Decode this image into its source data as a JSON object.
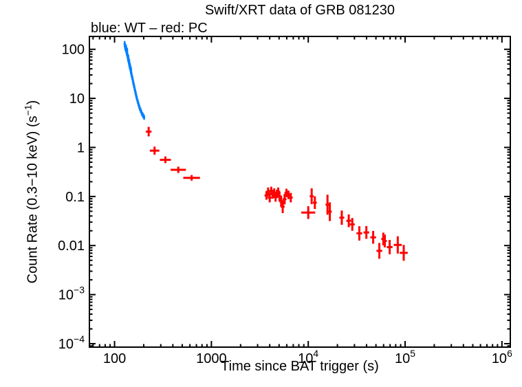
{
  "header": {
    "title": "Swift/XRT data of GRB 081230",
    "subtitle": "blue: WT – red: PC"
  },
  "chart_data": {
    "type": "scatter",
    "title": "Swift/XRT data of GRB 081230",
    "subtitle": "blue: WT – red: PC",
    "xlabel": "Time since BAT trigger (s)",
    "ylabel": "Count Rate (0.3−10 keV) (s⁻¹)",
    "ylabel_parts": {
      "pre": "Count Rate (0.3−10 keV) (s",
      "sup": "−1",
      "post": ")"
    },
    "grid": false,
    "legend_position": "none",
    "x_axis": {
      "scale": "log",
      "min": 55,
      "max": 1220000,
      "ticks": [
        {
          "v": 100,
          "label": "100"
        },
        {
          "v": 1000,
          "label": "1000"
        },
        {
          "v": 10000,
          "label": "10^4"
        },
        {
          "v": 100000,
          "label": "10^5"
        },
        {
          "v": 1000000,
          "label": "10^6"
        }
      ]
    },
    "y_axis": {
      "scale": "log",
      "min": 8.5e-05,
      "max": 183,
      "ticks": [
        {
          "v": 100,
          "label": "100"
        },
        {
          "v": 10,
          "label": "10"
        },
        {
          "v": 1,
          "label": "1"
        },
        {
          "v": 0.1,
          "label": "0.1"
        },
        {
          "v": 0.01,
          "label": "0.01"
        },
        {
          "v": 0.001,
          "label": "10^-3"
        },
        {
          "v": 0.0001,
          "label": "10^-4"
        }
      ]
    },
    "series": [
      {
        "name": "WT",
        "color": "#0080ff",
        "marker": "cross-errorbar",
        "points": [
          [
            127,
            128,
            1.15,
            1.006
          ],
          [
            128,
            118,
            1.15,
            1.006
          ],
          [
            129,
            108,
            1.15,
            1.006
          ],
          [
            130,
            112,
            1.15,
            1.006
          ],
          [
            131,
            99,
            1.15,
            1.006
          ],
          [
            132,
            105,
            1.15,
            1.006
          ],
          [
            133,
            90,
            1.15,
            1.006
          ],
          [
            134,
            83,
            1.15,
            1.006
          ],
          [
            135,
            93,
            1.15,
            1.006
          ],
          [
            136,
            76,
            1.15,
            1.006
          ],
          [
            137,
            70,
            1.15,
            1.006
          ],
          [
            138,
            63,
            1.15,
            1.006
          ],
          [
            139,
            67,
            1.15,
            1.006
          ],
          [
            140,
            58,
            1.15,
            1.006
          ],
          [
            141,
            52,
            1.15,
            1.006
          ],
          [
            142,
            55,
            1.15,
            1.006
          ],
          [
            143,
            47,
            1.15,
            1.006
          ],
          [
            144,
            43,
            1.15,
            1.006
          ],
          [
            145,
            45,
            1.15,
            1.006
          ],
          [
            146,
            40,
            1.15,
            1.006
          ],
          [
            147,
            36,
            1.15,
            1.006
          ],
          [
            148,
            38,
            1.15,
            1.006
          ],
          [
            149,
            33,
            1.15,
            1.006
          ],
          [
            150,
            30,
            1.13,
            1.006
          ],
          [
            152,
            27,
            1.13,
            1.006
          ],
          [
            154,
            24,
            1.13,
            1.006
          ],
          [
            156,
            21,
            1.13,
            1.006
          ],
          [
            158,
            19,
            1.13,
            1.006
          ],
          [
            160,
            17,
            1.12,
            1.006
          ],
          [
            162,
            15,
            1.12,
            1.006
          ],
          [
            164,
            13.5,
            1.12,
            1.006
          ],
          [
            166,
            12.2,
            1.12,
            1.006
          ],
          [
            168,
            11.0,
            1.12,
            1.006
          ],
          [
            170,
            10.0,
            1.12,
            1.006
          ],
          [
            173,
            8.8,
            1.12,
            1.006
          ],
          [
            176,
            7.8,
            1.12,
            1.006
          ],
          [
            179,
            7.0,
            1.12,
            1.006
          ],
          [
            182,
            6.3,
            1.12,
            1.006
          ],
          [
            186,
            5.7,
            1.12,
            1.006
          ],
          [
            190,
            5.1,
            1.12,
            1.006
          ],
          [
            194,
            4.7,
            1.12,
            1.006
          ],
          [
            198,
            4.4,
            1.12,
            1.006
          ],
          [
            202,
            4.1,
            1.12,
            1.006
          ]
        ]
      },
      {
        "name": "PC",
        "color": "#ff0000",
        "marker": "cross-errorbar",
        "points": [
          [
            225,
            2.1,
            1.25,
            1.07
          ],
          [
            259,
            0.86,
            1.21,
            1.12
          ],
          [
            335,
            0.56,
            1.17,
            1.14
          ],
          [
            455,
            0.35,
            1.16,
            1.2
          ],
          [
            625,
            0.24,
            1.14,
            1.22
          ],
          [
            3700,
            0.105,
            1.22,
            1.012
          ],
          [
            3850,
            0.125,
            1.22,
            1.012
          ],
          [
            4000,
            0.095,
            1.25,
            1.012
          ],
          [
            4150,
            0.13,
            1.22,
            1.012
          ],
          [
            4300,
            0.11,
            1.22,
            1.012
          ],
          [
            4450,
            0.12,
            1.22,
            1.012
          ],
          [
            4600,
            0.098,
            1.25,
            1.012
          ],
          [
            4750,
            0.113,
            1.22,
            1.012
          ],
          [
            4900,
            0.125,
            1.22,
            1.012
          ],
          [
            5050,
            0.1,
            1.25,
            1.012
          ],
          [
            5250,
            0.08,
            1.3,
            1.012
          ],
          [
            5450,
            0.062,
            1.35,
            1.012
          ],
          [
            5700,
            0.088,
            1.28,
            1.012
          ],
          [
            5950,
            0.118,
            1.22,
            1.012
          ],
          [
            6250,
            0.108,
            1.22,
            1.012
          ],
          [
            6600,
            0.095,
            1.25,
            1.012
          ],
          [
            10000,
            0.047,
            1.35,
            1.18
          ],
          [
            10850,
            0.101,
            1.45,
            1.04
          ],
          [
            11700,
            0.075,
            1.35,
            1.04
          ],
          [
            15800,
            0.068,
            1.6,
            1.04
          ],
          [
            16700,
            0.049,
            1.55,
            1.04
          ],
          [
            22200,
            0.037,
            1.4,
            1.06
          ],
          [
            26200,
            0.032,
            1.35,
            1.06
          ],
          [
            28500,
            0.027,
            1.35,
            1.06
          ],
          [
            33700,
            0.0177,
            1.4,
            1.07
          ],
          [
            39800,
            0.0185,
            1.35,
            1.07
          ],
          [
            46800,
            0.0147,
            1.35,
            1.07
          ],
          [
            54200,
            0.0078,
            1.45,
            1.07
          ],
          [
            59600,
            0.0136,
            1.35,
            1.05
          ],
          [
            61700,
            0.0124,
            1.35,
            1.05
          ],
          [
            69300,
            0.0093,
            1.4,
            1.07
          ],
          [
            84000,
            0.0103,
            1.5,
            1.1
          ],
          [
            96800,
            0.0071,
            1.45,
            1.1
          ]
        ]
      }
    ]
  },
  "colors": {
    "wt": "#0080ff",
    "pc": "#ff0000",
    "frame": "#000000",
    "background": "#ffffff"
  }
}
